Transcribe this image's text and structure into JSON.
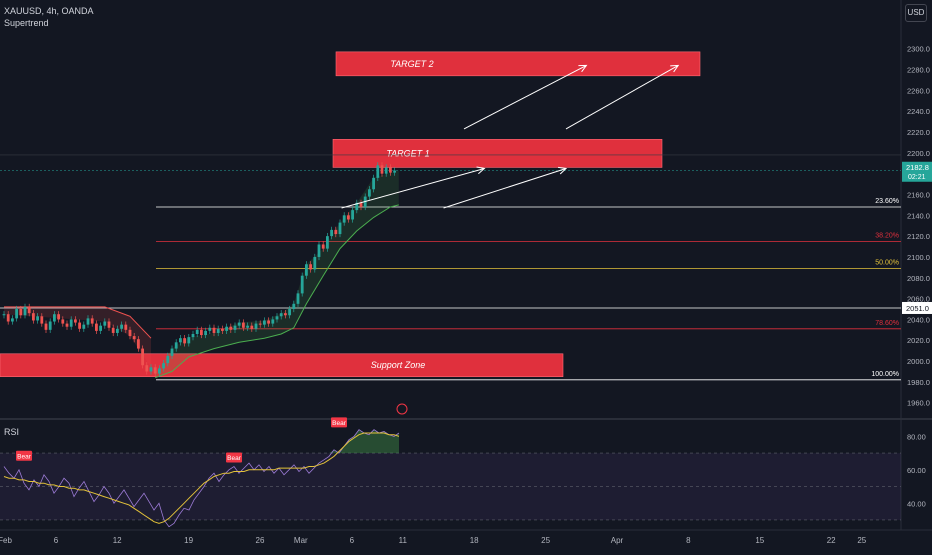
{
  "header": {
    "symbol_line": "XAUUSD, 4h, OANDA",
    "indicator": "Supertrend",
    "currency_button": "USD"
  },
  "rsi_panel": {
    "label": "RSI"
  },
  "colors": {
    "background": "#131722",
    "zone_red": "#e0303d",
    "fib_white": "#ffffff",
    "fib_red": "#e0303d",
    "fib_yellow": "#e3c23a",
    "supertrend_up": "#4caf50",
    "supertrend_down": "#ef5350",
    "candle_up": "#26a69a",
    "candle_down": "#ef5350",
    "rsi_line": "#9c7bd6",
    "rsi_ma": "#e3c23a",
    "price_badge": "#26a69a"
  },
  "chart_data": [
    {
      "type": "candlestick",
      "symbol": "XAUUSD",
      "timeframe": "4h",
      "y_axis": {
        "ticks": [
          1960,
          1980,
          2000,
          2020,
          2040,
          2060,
          2080,
          2100,
          2120,
          2140,
          2160,
          2180,
          2200,
          2220,
          2240,
          2260,
          2280,
          2300
        ],
        "tick_labels": [
          "1960.0",
          "1980.0",
          "2000.0",
          "2020.0",
          "2040.0",
          "2060.0",
          "2080.0",
          "2100.0",
          "2120.0",
          "2140.0",
          "2160.0",
          "2180.0",
          "2200.0",
          "2220.0",
          "2240.0",
          "2260.0",
          "2280.0",
          "2300.0"
        ],
        "range": [
          1953,
          2318
        ]
      },
      "x_axis": {
        "tick_labels": [
          {
            "label": "Feb",
            "day": 0
          },
          {
            "label": "6",
            "day": 5
          },
          {
            "label": "12",
            "day": 11
          },
          {
            "label": "19",
            "day": 18
          },
          {
            "label": "26",
            "day": 25
          },
          {
            "label": "Mar",
            "day": 29
          },
          {
            "label": "6",
            "day": 34
          },
          {
            "label": "11",
            "day": 39
          },
          {
            "label": "18",
            "day": 46
          },
          {
            "label": "25",
            "day": 53
          },
          {
            "label": "Apr",
            "day": 60
          },
          {
            "label": "8",
            "day": 67
          },
          {
            "label": "15",
            "day": 74
          },
          {
            "label": "22",
            "day": 81
          },
          {
            "label": "25",
            "day": 84
          }
        ]
      },
      "last_price": {
        "label": "2182.8",
        "value": 2182.8,
        "countdown": "02:21"
      },
      "candles": [
        [
          2044,
          2045
        ],
        [
          2045,
          2038
        ],
        [
          2038,
          2041
        ],
        [
          2041,
          2050
        ],
        [
          2050,
          2044
        ],
        [
          2044,
          2052
        ],
        [
          2052,
          2046
        ],
        [
          2046,
          2039
        ],
        [
          2039,
          2043
        ],
        [
          2043,
          2036
        ],
        [
          2036,
          2030
        ],
        [
          2030,
          2038
        ],
        [
          2038,
          2045
        ],
        [
          2045,
          2040
        ],
        [
          2040,
          2036
        ],
        [
          2036,
          2033
        ],
        [
          2033,
          2040
        ],
        [
          2040,
          2037
        ],
        [
          2037,
          2031
        ],
        [
          2031,
          2035
        ],
        [
          2035,
          2041
        ],
        [
          2041,
          2036
        ],
        [
          2036,
          2029
        ],
        [
          2029,
          2034
        ],
        [
          2034,
          2038
        ],
        [
          2038,
          2032
        ],
        [
          2032,
          2027
        ],
        [
          2027,
          2031
        ],
        [
          2031,
          2035
        ],
        [
          2035,
          2030
        ],
        [
          2030,
          2024
        ],
        [
          2024,
          2021
        ],
        [
          2021,
          2012
        ],
        [
          2012,
          1996
        ],
        [
          1996,
          1990
        ],
        [
          1990,
          1994
        ],
        [
          1994,
          1988
        ],
        [
          1988,
          1993
        ],
        [
          1993,
          1998
        ],
        [
          1998,
          2005
        ],
        [
          2005,
          2012
        ],
        [
          2012,
          2018
        ],
        [
          2018,
          2022
        ],
        [
          2022,
          2017
        ],
        [
          2017,
          2023
        ],
        [
          2023,
          2026
        ],
        [
          2026,
          2030
        ],
        [
          2030,
          2025
        ],
        [
          2025,
          2029
        ],
        [
          2029,
          2032
        ],
        [
          2032,
          2027
        ],
        [
          2027,
          2031
        ],
        [
          2031,
          2029
        ],
        [
          2029,
          2033
        ],
        [
          2033,
          2030
        ],
        [
          2030,
          2034
        ],
        [
          2034,
          2037
        ],
        [
          2037,
          2032
        ],
        [
          2032,
          2034
        ],
        [
          2034,
          2031
        ],
        [
          2031,
          2036
        ],
        [
          2036,
          2035
        ],
        [
          2035,
          2039
        ],
        [
          2039,
          2036
        ],
        [
          2036,
          2040
        ],
        [
          2040,
          2043
        ],
        [
          2043,
          2046
        ],
        [
          2046,
          2044
        ],
        [
          2044,
          2050
        ],
        [
          2050,
          2055
        ],
        [
          2055,
          2065
        ],
        [
          2065,
          2082
        ],
        [
          2082,
          2093
        ],
        [
          2093,
          2088
        ],
        [
          2088,
          2100
        ],
        [
          2100,
          2112
        ],
        [
          2112,
          2108
        ],
        [
          2108,
          2120
        ],
        [
          2120,
          2126
        ],
        [
          2126,
          2122
        ],
        [
          2122,
          2133
        ],
        [
          2133,
          2140
        ],
        [
          2140,
          2136
        ],
        [
          2136,
          2145
        ],
        [
          2145,
          2152
        ],
        [
          2152,
          2148
        ],
        [
          2148,
          2158
        ],
        [
          2158,
          2165
        ],
        [
          2165,
          2176
        ],
        [
          2176,
          2188
        ],
        [
          2188,
          2180
        ],
        [
          2180,
          2186
        ],
        [
          2186,
          2181
        ],
        [
          2181,
          2183
        ]
      ],
      "supertrend_down": [
        [
          0,
          2052
        ],
        [
          24,
          2052
        ],
        [
          30,
          2043
        ],
        [
          35,
          2022
        ]
      ],
      "supertrend_up": [
        [
          36,
          1984
        ],
        [
          40,
          1990
        ],
        [
          44,
          2004
        ],
        [
          50,
          2012
        ],
        [
          56,
          2018
        ],
        [
          62,
          2022
        ],
        [
          66,
          2026
        ],
        [
          69,
          2032
        ],
        [
          72,
          2055
        ],
        [
          76,
          2082
        ],
        [
          80,
          2108
        ],
        [
          84,
          2125
        ],
        [
          88,
          2138
        ],
        [
          92,
          2148
        ],
        [
          94,
          2150
        ]
      ],
      "fibonacci": [
        {
          "label": "23.60%",
          "value": 2148,
          "color": "#ffffff"
        },
        {
          "label": "38.20%",
          "value": 2115,
          "color": "#e0303d"
        },
        {
          "label": "50.00%",
          "value": 2089,
          "color": "#e3c23a"
        },
        {
          "label": "",
          "value": 2051,
          "color": "#ffffff",
          "price_label": "2051.0"
        },
        {
          "label": "78.60%",
          "value": 2031,
          "color": "#e0303d"
        },
        {
          "label": "100.00%",
          "value": 1982,
          "color": "#ffffff"
        }
      ],
      "zones": [
        {
          "label": "TARGET 2",
          "top": 2297,
          "bottom": 2274
        },
        {
          "label": "TARGET 1",
          "top": 2213,
          "bottom": 2186
        },
        {
          "label": "Support Zone",
          "top": 2007,
          "bottom": 1985
        }
      ],
      "arrows": [
        {
          "from": [
            2147,
            95
          ],
          "to": [
            2185,
            109
          ]
        },
        {
          "from": [
            2147,
            105
          ],
          "to": [
            2185,
            117
          ]
        },
        {
          "from": [
            2223,
            107
          ],
          "to": [
            2284,
            119
          ]
        },
        {
          "from": [
            2223,
            117
          ],
          "to": [
            2284,
            128
          ]
        }
      ]
    },
    {
      "type": "line",
      "title": "RSI",
      "y_axis": {
        "ticks": [
          40,
          60,
          80
        ],
        "tick_labels": [
          "40.00",
          "60.00",
          "80.00"
        ],
        "range": [
          27,
          88
        ]
      },
      "bands": [
        30,
        50,
        70
      ],
      "rsi": [
        62,
        58,
        55,
        60,
        52,
        48,
        54,
        50,
        57,
        53,
        46,
        50,
        55,
        52,
        44,
        49,
        53,
        47,
        41,
        45,
        50,
        46,
        40,
        44,
        48,
        43,
        38,
        42,
        46,
        41,
        36,
        40,
        30,
        26,
        28,
        33,
        37,
        36,
        42,
        46,
        50,
        55,
        58,
        53,
        57,
        60,
        62,
        58,
        61,
        64,
        60,
        63,
        59,
        62,
        58,
        61,
        57,
        60,
        63,
        59,
        62,
        58,
        61,
        64,
        66,
        68,
        72,
        70,
        74,
        78,
        80,
        84,
        82,
        81,
        84,
        82,
        83,
        81,
        80,
        82
      ],
      "rsi_ma": [
        56,
        55,
        55,
        54,
        54,
        53,
        53,
        52,
        52,
        51,
        51,
        50,
        50,
        49,
        49,
        48,
        48,
        47,
        46,
        45,
        44,
        43,
        42,
        41,
        40,
        39,
        37,
        35,
        33,
        31,
        29,
        28,
        29,
        31,
        34,
        37,
        40,
        43,
        46,
        49,
        52,
        54,
        56,
        57,
        58,
        58,
        59,
        59,
        59,
        60,
        60,
        60,
        60,
        60,
        60,
        61,
        61,
        61,
        61,
        61,
        61,
        62,
        62,
        63,
        64,
        66,
        68,
        71,
        74,
        77,
        79,
        81,
        82,
        82,
        82,
        82,
        82,
        81,
        81,
        80
      ],
      "labels": [
        {
          "text": "Bear",
          "x_idx": 4,
          "value": 66
        },
        {
          "text": "Bear",
          "x_idx": 46,
          "value": 65
        },
        {
          "text": "Bear",
          "x_idx": 67,
          "value": 86
        }
      ]
    }
  ]
}
